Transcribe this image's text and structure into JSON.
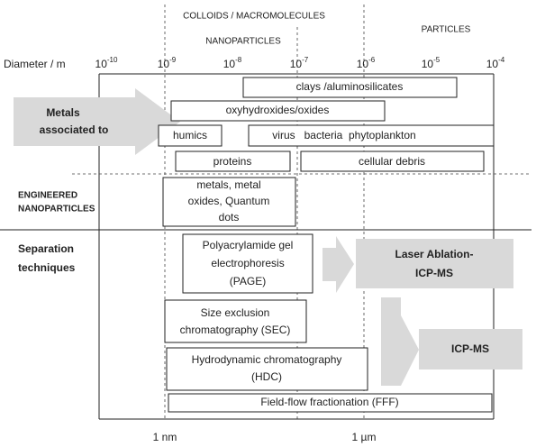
{
  "header": {
    "colloids": "COLLOIDS / MACROMOLECULES",
    "nanoparticles": "NANOPARTICLES",
    "particles": "PARTICLES"
  },
  "axis": {
    "label": "Diameter / m",
    "ticks": [
      {
        "base": "10",
        "exp": "-10"
      },
      {
        "base": "10",
        "exp": "-9"
      },
      {
        "base": "10",
        "exp": "-8"
      },
      {
        "base": "10",
        "exp": "-7"
      },
      {
        "base": "10",
        "exp": "-6"
      },
      {
        "base": "10",
        "exp": "-5"
      },
      {
        "base": "10",
        "exp": "-4"
      }
    ],
    "bottom": [
      "1 nm",
      "1 µm"
    ]
  },
  "metals": {
    "lines": [
      "Metals",
      "associated to"
    ],
    "nodes": [
      "clays /aluminosilicates",
      "oxyhydroxides/oxides",
      "humics",
      "virus   bacteria  phytoplankton",
      "proteins",
      "cellular debris"
    ]
  },
  "engineered": {
    "lines": [
      "ENGINEERED",
      "NANOPARTICLES"
    ],
    "node": [
      "metals, metal",
      "oxides, Quantum",
      "dots"
    ]
  },
  "separation": {
    "lines": [
      "Separation",
      "techniques"
    ],
    "page": [
      "Polyacrylamide gel",
      "electrophoresis",
      "(PAGE)"
    ],
    "sec": [
      "Size exclusion",
      "chromatography (SEC)"
    ],
    "hdc": [
      "Hydrodynamic chromatography",
      "(HDC)"
    ],
    "fff": "Field-flow fractionation (FFF)",
    "laser": [
      "Laser Ablation-",
      "ICP-MS"
    ],
    "icpms": "ICP-MS"
  }
}
